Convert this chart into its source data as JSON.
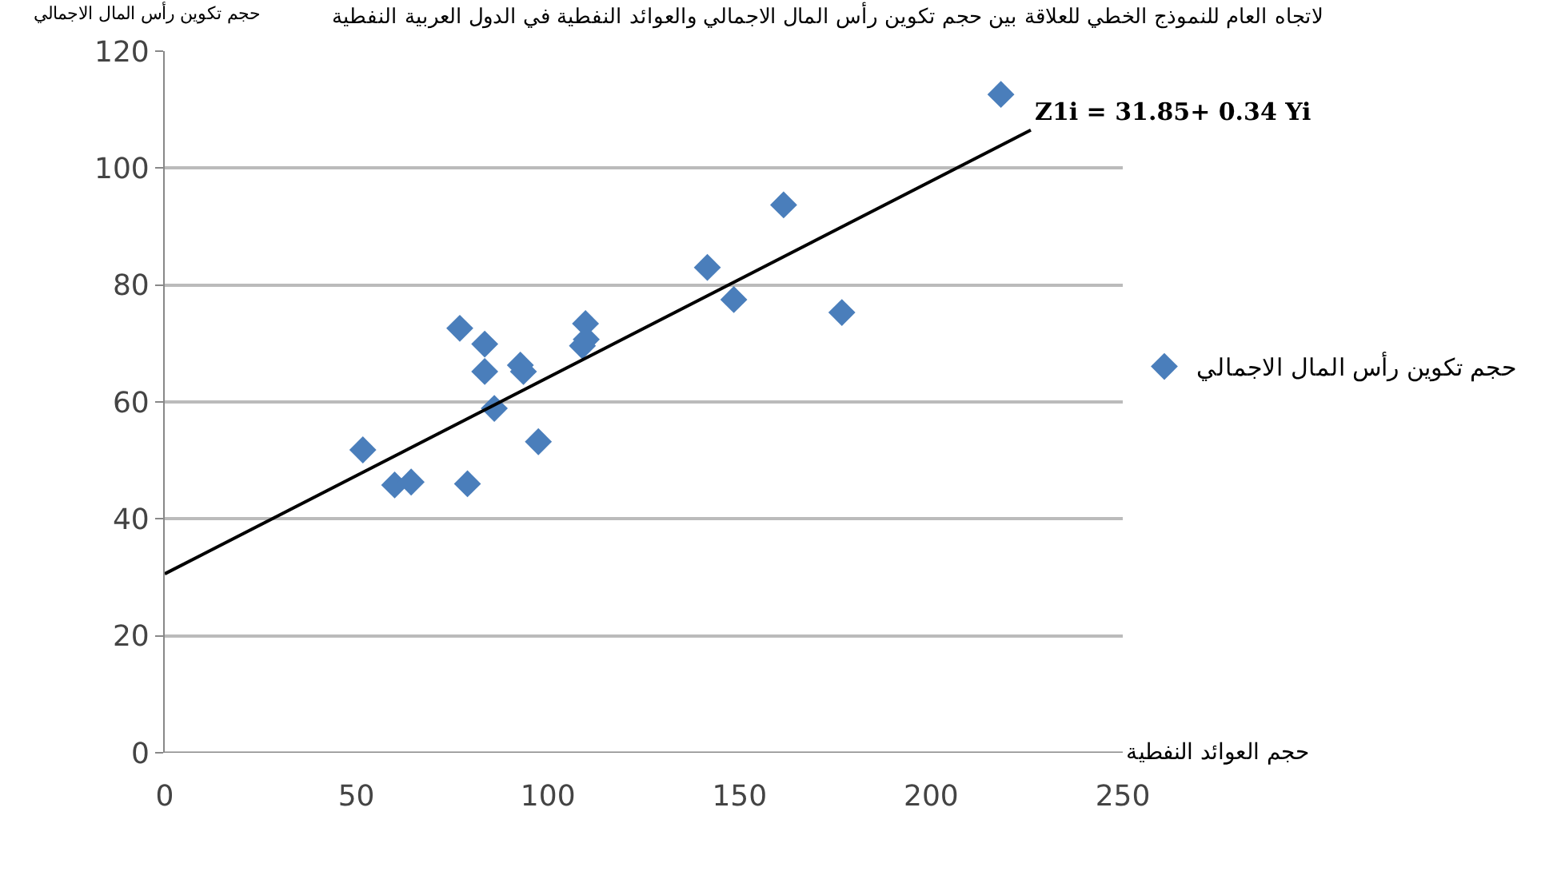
{
  "chart_data": {
    "type": "scatter",
    "title": "لاتجاه العام للنموذج الخطي للعلاقة بين حجم تكوين رأس المال الاجمالي والعوائد النفطية في الدول العربية النفطية",
    "xlabel": "حجم العوائد النفطية",
    "ylabel": "حجم تكوين رأس المال الاجمالي",
    "series": [
      {
        "name": "حجم تكوين رأس المال الاجمالي",
        "color": "#4a7ebb",
        "x": [
          51.7,
          60,
          64.3,
          77,
          79,
          83.5,
          83.5,
          86,
          92.8,
          93.6,
          97.5,
          109,
          109.8,
          110,
          141.6,
          148.5,
          161.5,
          176.7,
          218.2
        ],
        "values": [
          51.8,
          45.8,
          46.3,
          72.6,
          46,
          69.9,
          65.2,
          58.9,
          66.3,
          65.2,
          53.2,
          69.6,
          73.4,
          70.7,
          83,
          77.5,
          93.7,
          75.3,
          112.6
        ]
      },
      {
        "type": "line",
        "color": "#000000",
        "marker": "none",
        "x": [
          0,
          226
        ],
        "values": [
          30.6,
          106.5
        ]
      }
    ],
    "annotations": [
      {
        "text": "Z1i = 31.85+ 0.34 Yi",
        "x": 226,
        "y": 106.5
      }
    ],
    "xlim": [
      0,
      250
    ],
    "xticks": [
      0,
      50,
      100,
      150,
      200,
      250
    ],
    "ylim": [
      0,
      120
    ],
    "yticks": [
      0,
      20,
      40,
      60,
      80,
      100,
      120
    ],
    "grid": "y",
    "legend": "right",
    "marker": "diamond"
  }
}
